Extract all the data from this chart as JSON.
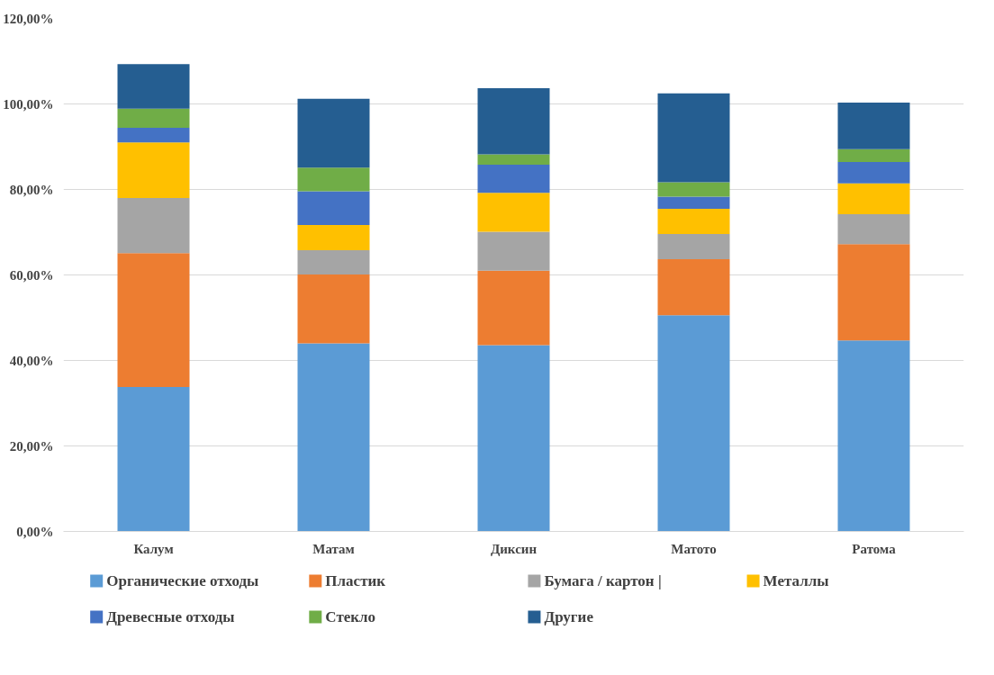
{
  "chart_data": {
    "type": "bar",
    "stacked": true,
    "categories": [
      "Калум",
      "Матам",
      "Диксин",
      "Матото",
      "Ратома"
    ],
    "series": [
      {
        "name": "Органические отходы",
        "color": "#5b9bd5",
        "values": [
          33.8,
          44.0,
          43.6,
          50.6,
          44.7
        ]
      },
      {
        "name": "Пластик",
        "color": "#ed7d31",
        "values": [
          31.3,
          16.1,
          17.4,
          13.1,
          22.5
        ]
      },
      {
        "name": "Бумага / картон |",
        "color": "#a5a5a5",
        "values": [
          12.9,
          5.7,
          9.1,
          5.9,
          7.0
        ]
      },
      {
        "name": "Металлы",
        "color": "#ffc000",
        "values": [
          13.0,
          5.9,
          9.1,
          5.9,
          7.2
        ]
      },
      {
        "name": "Древесные отходы",
        "color": "#4472c4",
        "values": [
          3.4,
          7.9,
          6.6,
          2.8,
          5.0
        ]
      },
      {
        "name": "Стекло",
        "color": "#70ad47",
        "values": [
          4.5,
          5.5,
          2.4,
          3.4,
          3.0
        ]
      },
      {
        "name": "Другие",
        "color": "#255e91",
        "values": [
          10.4,
          16.1,
          15.5,
          20.8,
          10.9
        ]
      }
    ],
    "ylim": [
      0,
      120
    ],
    "yticks": [
      {
        "value": 0,
        "label": "0,00%"
      },
      {
        "value": 20,
        "label": "20,00%"
      },
      {
        "value": 40,
        "label": "40,00%"
      },
      {
        "value": 60,
        "label": "60,00%"
      },
      {
        "value": 80,
        "label": "80,00%"
      },
      {
        "value": 100,
        "label": "100,00%"
      },
      {
        "value": 120,
        "label": "120,00%"
      }
    ],
    "grid": "y",
    "legend": "bottom"
  }
}
